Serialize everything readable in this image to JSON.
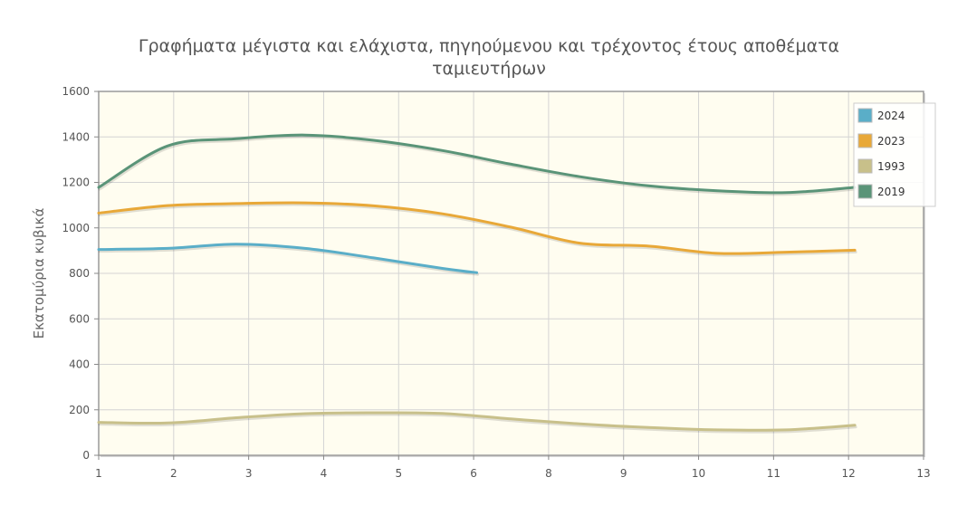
{
  "chart_data": {
    "type": "line",
    "title_line1": "Γραφήματα μέγιστα και ελάχιστα, πηγηούμενου και τρέχοντος έτους αποθέματα",
    "title_line2": "ταμιευτήρων",
    "xlabel": "",
    "ylabel": "Εκατομύρια κυβικά",
    "xlim": [
      1,
      13
    ],
    "ylim": [
      0,
      1600
    ],
    "x_ticks": [
      "1",
      "2",
      "3",
      "4",
      "5",
      "6",
      "8",
      "9",
      "10",
      "11",
      "12",
      "13"
    ],
    "y_ticks": [
      "0",
      "200",
      "400",
      "600",
      "800",
      "1000",
      "1200",
      "1400",
      "1600"
    ],
    "grid": true,
    "plot_background": "#fffdf0",
    "legend_position": "top-right",
    "series": [
      {
        "name": "2024",
        "color": "#5aaec8",
        "x": [
          1,
          2,
          3,
          4,
          5,
          6,
          6.5
        ],
        "y": [
          905,
          910,
          928,
          910,
          868,
          822,
          803
        ]
      },
      {
        "name": "2023",
        "color": "#e8a838",
        "x": [
          1,
          2,
          3,
          4,
          5,
          6,
          7,
          8,
          9,
          10,
          11,
          12
        ],
        "y": [
          1065,
          1098,
          1107,
          1110,
          1097,
          1062,
          1003,
          933,
          920,
          888,
          893,
          902
        ]
      },
      {
        "name": "1993",
        "color": "#c8c08a",
        "x": [
          1,
          2,
          3,
          4,
          5,
          6,
          7,
          8,
          9,
          10,
          11,
          12
        ],
        "y": [
          145,
          142,
          165,
          183,
          187,
          184,
          160,
          138,
          122,
          112,
          112,
          132
        ]
      },
      {
        "name": "2019",
        "color": "#5a9478",
        "x": [
          1,
          2,
          3,
          4,
          5,
          6,
          7,
          8,
          9,
          10,
          11,
          12
        ],
        "y": [
          1178,
          1360,
          1392,
          1408,
          1385,
          1340,
          1280,
          1225,
          1185,
          1163,
          1155,
          1178
        ]
      }
    ]
  }
}
